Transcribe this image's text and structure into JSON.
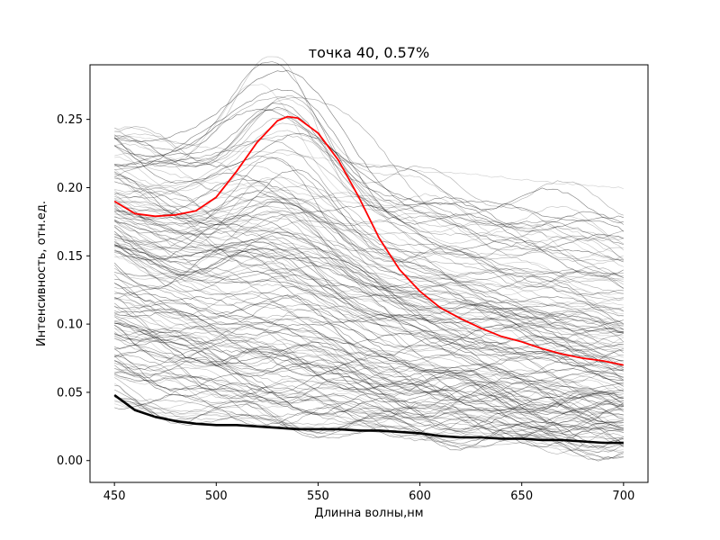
{
  "chart_data": {
    "type": "line",
    "title": "точка 40, 0.57%",
    "xlabel": "Длинна волны,нм",
    "ylabel": "Интенсивность, отн.ед.",
    "xlim": [
      438,
      712
    ],
    "ylim": [
      -0.016,
      0.29
    ],
    "xticks": [
      450,
      500,
      550,
      600,
      650,
      700
    ],
    "yticks": [
      0.0,
      0.05,
      0.1,
      0.15,
      0.2,
      0.25
    ],
    "ytick_labels": [
      "0.00",
      "0.05",
      "0.10",
      "0.15",
      "0.20",
      "0.25"
    ],
    "grid": false,
    "colors": {
      "highlight": "#ff0000",
      "baseline": "#000000",
      "background_curves": "#000000"
    },
    "background_curves": {
      "count": 160,
      "x_range": [
        450,
        700
      ],
      "value_at_450_range": [
        0.04,
        0.243
      ],
      "value_at_700_range": [
        0.003,
        0.177
      ],
      "peak_near_nm": 530
    },
    "series": [
      {
        "role": "highlight",
        "color": "#ff0000",
        "x": [
          450,
          460,
          470,
          480,
          490,
          500,
          510,
          520,
          530,
          535,
          540,
          550,
          560,
          570,
          580,
          590,
          600,
          610,
          620,
          630,
          640,
          650,
          660,
          670,
          680,
          690,
          700
        ],
        "y": [
          0.19,
          0.181,
          0.179,
          0.18,
          0.183,
          0.193,
          0.212,
          0.233,
          0.249,
          0.252,
          0.251,
          0.24,
          0.22,
          0.193,
          0.163,
          0.14,
          0.124,
          0.112,
          0.104,
          0.097,
          0.091,
          0.087,
          0.082,
          0.078,
          0.075,
          0.073,
          0.07
        ]
      },
      {
        "role": "baseline",
        "color": "#000000",
        "x": [
          450,
          460,
          470,
          480,
          490,
          500,
          510,
          520,
          530,
          540,
          550,
          560,
          570,
          580,
          590,
          600,
          610,
          620,
          630,
          640,
          650,
          660,
          670,
          680,
          690,
          700
        ],
        "y": [
          0.048,
          0.037,
          0.032,
          0.029,
          0.027,
          0.026,
          0.026,
          0.025,
          0.024,
          0.023,
          0.023,
          0.023,
          0.022,
          0.022,
          0.021,
          0.02,
          0.018,
          0.017,
          0.017,
          0.016,
          0.016,
          0.015,
          0.015,
          0.014,
          0.013,
          0.013
        ]
      }
    ]
  }
}
